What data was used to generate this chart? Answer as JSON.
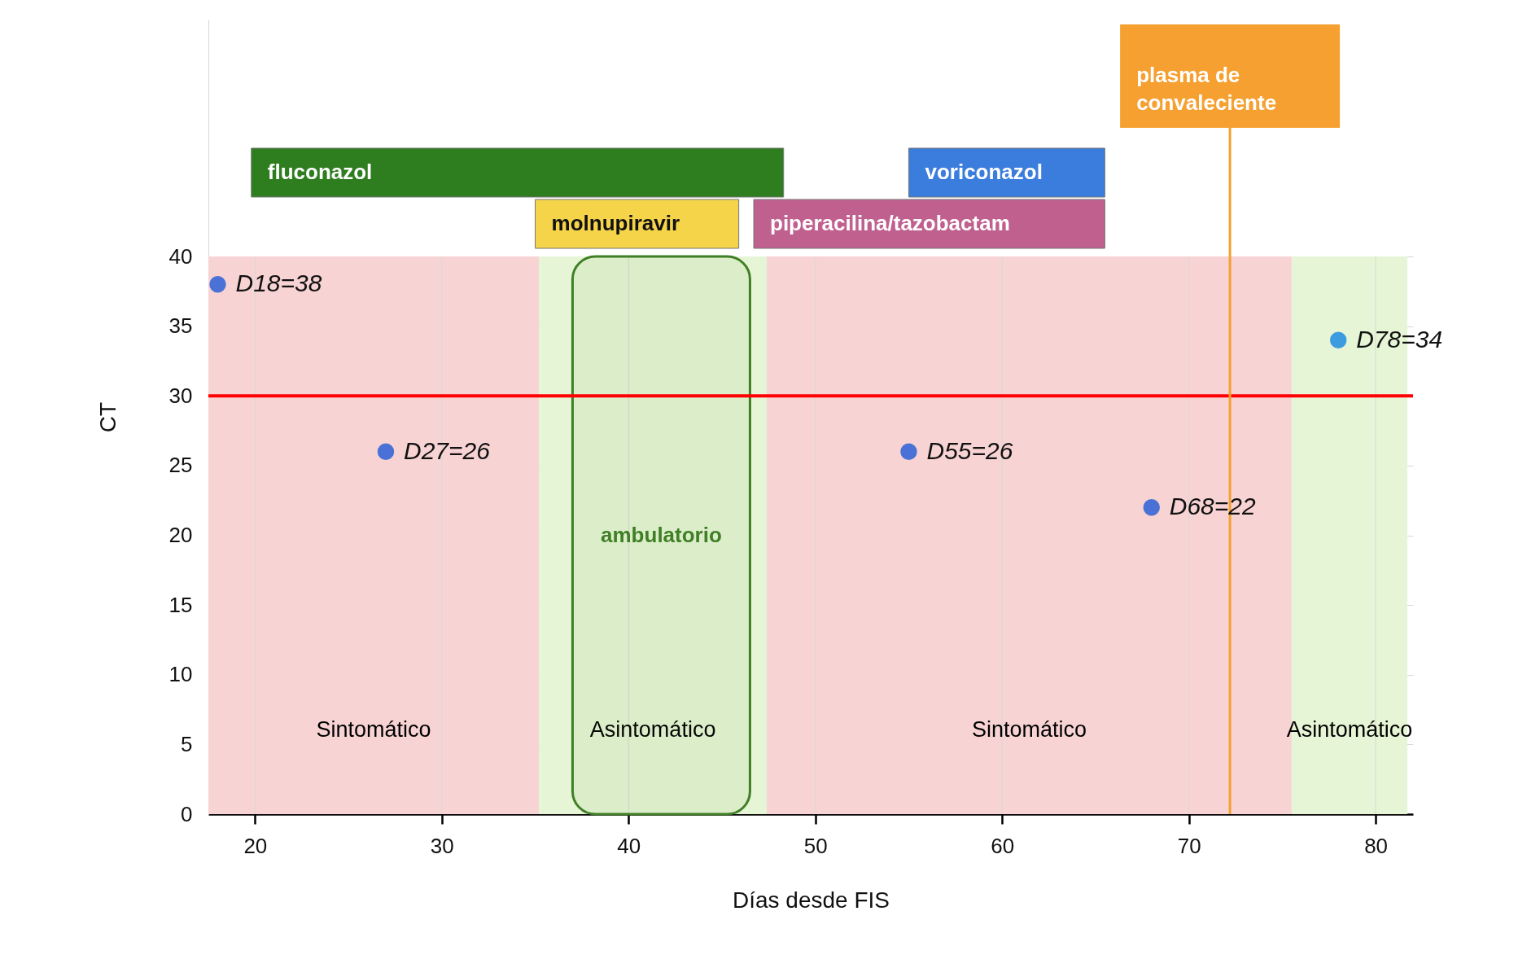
{
  "chart_data": {
    "type": "scatter",
    "xlabel": "Días desde FIS",
    "ylabel": "CT",
    "x": [
      18,
      27,
      55,
      68,
      78
    ],
    "values": [
      38,
      26,
      26,
      22,
      34
    ],
    "colors": [
      "#4a72d6",
      "#4a72d6",
      "#4a72d6",
      "#4a72d6",
      "#3d9be0"
    ],
    "value_labels": [
      "D18=38",
      "D27=26",
      "D55=26",
      "D68=22",
      "D78=34"
    ],
    "xlim": [
      17.5,
      82
    ],
    "xticks": [
      20,
      30,
      40,
      50,
      60,
      70,
      80
    ],
    "ylim": [
      0,
      57
    ],
    "yticks": [
      0,
      5,
      10,
      15,
      20,
      25,
      30,
      35,
      40
    ],
    "grid": true,
    "marker": "circle",
    "ref_lines": [
      {
        "axis": "y",
        "value": 30,
        "color": "#ff0000"
      },
      {
        "axis": "x",
        "value": 72.2,
        "label": "plasma de convaleciente",
        "color": "#f5a030"
      }
    ],
    "bands": [
      {
        "axis": "x",
        "from": 17.5,
        "to": 35.2,
        "label": "Sintomático",
        "color": "#f8d3d3"
      },
      {
        "axis": "x",
        "from": 35.2,
        "to": 47.4,
        "label": "Asintomático",
        "color": "#e6f5d5"
      },
      {
        "axis": "x",
        "from": 47.4,
        "to": 75.5,
        "label": "Sintomático",
        "color": "#f8d3d3"
      },
      {
        "axis": "x",
        "from": 75.5,
        "to": 81.7,
        "label": "Asintomático",
        "color": "#e6f5d5"
      },
      {
        "axis": "x",
        "from": 37,
        "to": 46.5,
        "label": "ambulatorio",
        "color": "#3f7f25"
      },
      {
        "axis": "x",
        "from": 19.8,
        "to": 48.3,
        "label": "fluconazol",
        "color": "#2e7d1f"
      },
      {
        "axis": "x",
        "from": 35,
        "to": 45.9,
        "label": "molnupiravir",
        "color": "#f5d44a"
      },
      {
        "axis": "x",
        "from": 55,
        "to": 65.5,
        "label": "voriconazol",
        "color": "#3b7ddd"
      },
      {
        "axis": "x",
        "from": 46.7,
        "to": 65.5,
        "label": "piperacilina/tazobactam",
        "color": "#c0608f"
      }
    ]
  }
}
